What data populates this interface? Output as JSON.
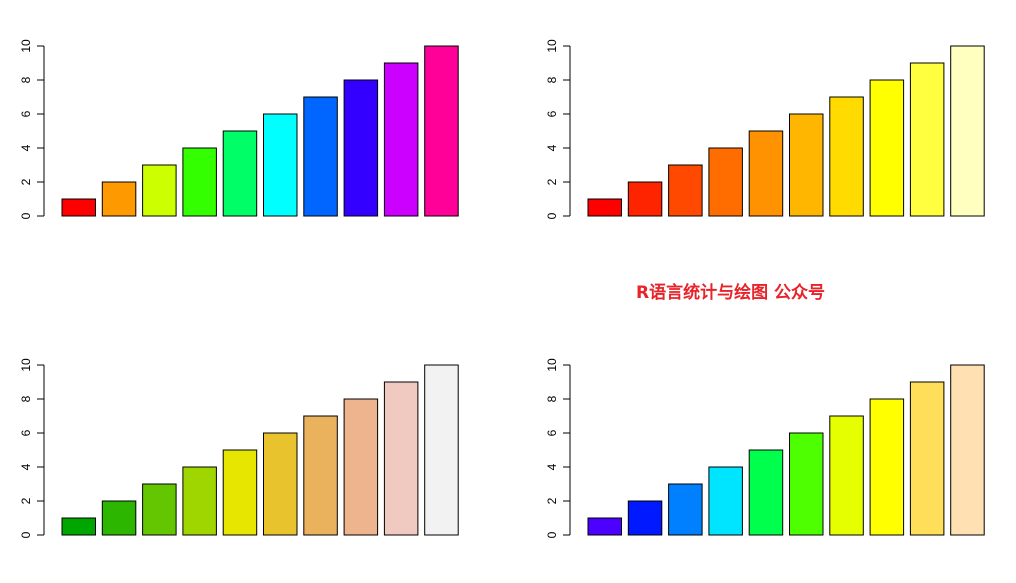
{
  "watermark": "R语言统计与绘图 公众号",
  "chart_data": [
    {
      "type": "bar",
      "categories": [
        "",
        "",
        "",
        "",
        "",
        "",
        "",
        "",
        "",
        ""
      ],
      "values": [
        1,
        2,
        3,
        4,
        5,
        6,
        7,
        8,
        9,
        10
      ],
      "ylim": [
        0,
        10
      ],
      "yticks": [
        0,
        2,
        4,
        6,
        8,
        10
      ],
      "colors": [
        "#FF0000",
        "#FF9900",
        "#CCFF00",
        "#33FF00",
        "#00FF66",
        "#00FFFF",
        "#0066FF",
        "#3300FF",
        "#CC00FF",
        "#FF0099"
      ],
      "grid": false
    },
    {
      "type": "bar",
      "categories": [
        "",
        "",
        "",
        "",
        "",
        "",
        "",
        "",
        "",
        ""
      ],
      "values": [
        1,
        2,
        3,
        4,
        5,
        6,
        7,
        8,
        9,
        10
      ],
      "ylim": [
        0,
        10
      ],
      "yticks": [
        0,
        2,
        4,
        6,
        8,
        10
      ],
      "colors": [
        "#FF0000",
        "#FF2400",
        "#FF4900",
        "#FF6D00",
        "#FF9200",
        "#FFB600",
        "#FFDB00",
        "#FFFF00",
        "#FFFF40",
        "#FFFFBF"
      ],
      "grid": false
    },
    {
      "type": "bar",
      "categories": [
        "",
        "",
        "",
        "",
        "",
        "",
        "",
        "",
        "",
        ""
      ],
      "values": [
        1,
        2,
        3,
        4,
        5,
        6,
        7,
        8,
        9,
        10
      ],
      "ylim": [
        0,
        10
      ],
      "yticks": [
        0,
        2,
        4,
        6,
        8,
        10
      ],
      "colors": [
        "#00A600",
        "#2DB600",
        "#63C600",
        "#A0D600",
        "#E6E600",
        "#E8C32E",
        "#EBB25E",
        "#EDB48E",
        "#F0C9C0",
        "#F2F2F2"
      ],
      "grid": false
    },
    {
      "type": "bar",
      "categories": [
        "",
        "",
        "",
        "",
        "",
        "",
        "",
        "",
        "",
        ""
      ],
      "values": [
        1,
        2,
        3,
        4,
        5,
        6,
        7,
        8,
        9,
        10
      ],
      "ylim": [
        0,
        10
      ],
      "yticks": [
        0,
        2,
        4,
        6,
        8,
        10
      ],
      "colors": [
        "#4C00FF",
        "#0019FF",
        "#0080FF",
        "#00E5FF",
        "#00FF4D",
        "#4DFF00",
        "#E6FF00",
        "#FFFF00",
        "#FFDE59",
        "#FFE0B3"
      ],
      "grid": false
    }
  ]
}
